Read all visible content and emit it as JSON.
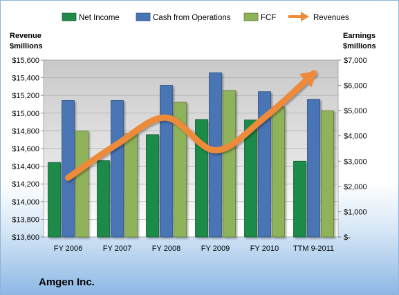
{
  "chart_data": {
    "type": "bar",
    "title": "Amgen Inc.",
    "categories": [
      "FY 2006",
      "FY 2007",
      "FY 2008",
      "FY 2009",
      "FY 2010",
      "TTM 9-2011"
    ],
    "left_axis": {
      "label_line1": "Revenue",
      "label_line2": "$millions",
      "min": 13600,
      "max": 15600,
      "step": 200,
      "ticks": [
        "$13,600",
        "$13,800",
        "$14,000",
        "$14,200",
        "$14,400",
        "$14,600",
        "$14,800",
        "$15,000",
        "$15,200",
        "$15,400",
        "$15,600"
      ]
    },
    "right_axis": {
      "label_line1": "Earnings",
      "label_line2": "$millions",
      "min": 0,
      "max": 7000,
      "step": 1000,
      "ticks": [
        "$-",
        "$1,000",
        "$2,000",
        "$3,000",
        "$4,000",
        "$5,000",
        "$6,000",
        "$7,000"
      ]
    },
    "series": [
      {
        "name": "Net Income",
        "axis": "right",
        "color": "#1f8a4a",
        "values": [
          2950,
          3020,
          4050,
          4650,
          4630,
          3000
        ]
      },
      {
        "name": "Cash from Operations",
        "axis": "right",
        "color": "#4a74b4",
        "values": [
          5400,
          5400,
          6000,
          6500,
          5750,
          5450
        ]
      },
      {
        "name": "FCF",
        "axis": "right",
        "color": "#8fb35a",
        "values": [
          4200,
          4100,
          5330,
          5800,
          5150,
          5000
        ]
      },
      {
        "name": "Revenues",
        "axis": "left",
        "type": "arrow-line",
        "color": "#ee8b3a",
        "values": [
          14270,
          14650,
          14950,
          14580,
          14950,
          15450
        ]
      }
    ],
    "legend": {
      "placement": "top"
    },
    "grid": true
  }
}
